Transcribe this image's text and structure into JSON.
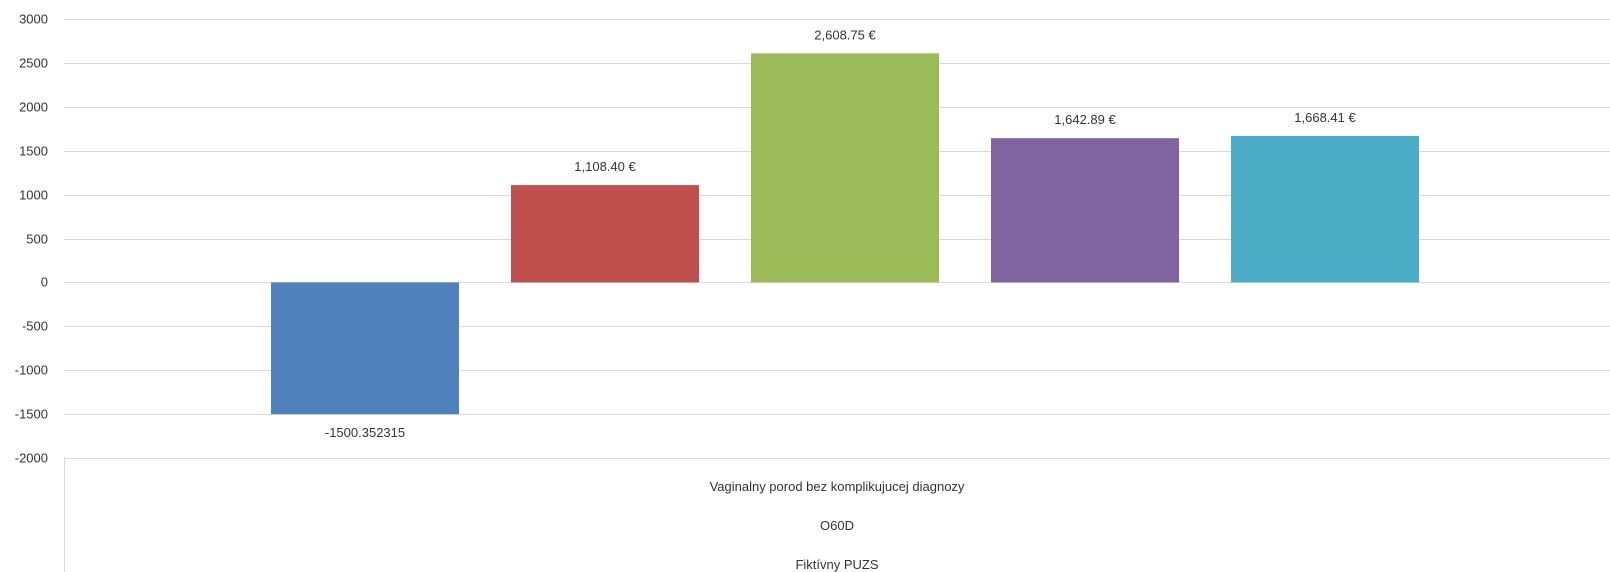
{
  "chart_data": {
    "type": "bar",
    "y_ticks": [
      3000,
      2500,
      2000,
      1500,
      1000,
      500,
      0,
      -500,
      -1000,
      -1500,
      -2000
    ],
    "ylim": [
      -2000,
      3000
    ],
    "grid": true,
    "category_levels": [
      "Vaginalny porod bez komplikujucej diagnozy",
      "O60D",
      "Fiktívny PUZS"
    ],
    "series": [
      {
        "values": [
          -1500.352315
        ],
        "label": "-1500.352315",
        "color": "#4F81BD"
      },
      {
        "values": [
          1108.4
        ],
        "label": "1,108.40 €",
        "color": "#C0504D"
      },
      {
        "values": [
          2608.75
        ],
        "label": "2,608.75 €",
        "color": "#9BBB59"
      },
      {
        "values": [
          1642.89
        ],
        "label": "1,642.89 €",
        "color": "#8064A2"
      },
      {
        "values": [
          1668.41
        ],
        "label": "1,668.41 €",
        "color": "#4BACC6"
      }
    ]
  }
}
